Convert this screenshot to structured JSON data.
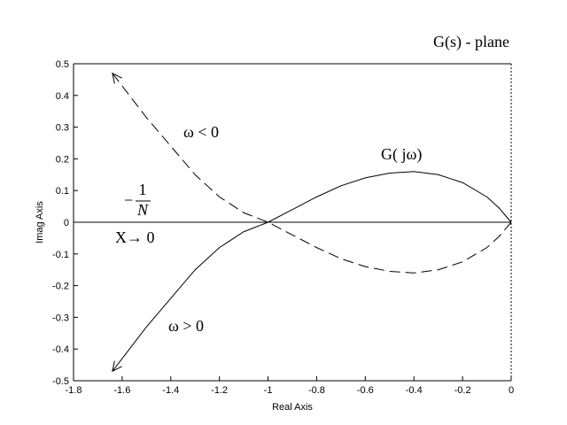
{
  "chart_data": {
    "type": "line",
    "xlabel": "Real Axis",
    "ylabel": "Imag Axis",
    "annotations": {
      "plane": "G(s) - plane",
      "gjw": "G( jω)",
      "w_neg": "ω < 0",
      "w_pos": "ω > 0",
      "x_to_zero": "X→ 0",
      "neg_inverse_n": {
        "sign": "−",
        "numerator": "1",
        "denominator": "N"
      }
    },
    "x": [
      -1.64,
      -1.5,
      -1.4,
      -1.3,
      -1.2,
      -1.1,
      -1.0,
      -0.9,
      -0.8,
      -0.7,
      -0.6,
      -0.5,
      -0.4,
      -0.3,
      -0.2,
      -0.1,
      -0.05,
      0
    ],
    "series": [
      {
        "name": "ω > 0",
        "color": "#000000",
        "dash": false,
        "values": [
          -0.47,
          -0.33,
          -0.24,
          -0.15,
          -0.08,
          -0.03,
          0,
          0.04,
          0.08,
          0.115,
          0.14,
          0.155,
          0.16,
          0.15,
          0.125,
          0.08,
          0.045,
          0
        ]
      },
      {
        "name": "ω < 0",
        "color": "#000000",
        "dash": true,
        "values": [
          0.47,
          0.33,
          0.24,
          0.15,
          0.08,
          0.03,
          0,
          -0.04,
          -0.08,
          -0.115,
          -0.14,
          -0.155,
          -0.16,
          -0.15,
          -0.125,
          -0.08,
          -0.045,
          0
        ]
      }
    ],
    "xlim": [
      -1.8,
      0
    ],
    "ylim": [
      -0.5,
      0.5
    ],
    "xticks": [
      -1.8,
      -1.6,
      -1.4,
      -1.2,
      -1,
      -0.8,
      -0.6,
      -0.4,
      -0.2,
      0
    ],
    "yticks": [
      -0.5,
      -0.4,
      -0.3,
      -0.2,
      -0.1,
      0,
      0.1,
      0.2,
      0.3,
      0.4,
      0.5
    ]
  }
}
